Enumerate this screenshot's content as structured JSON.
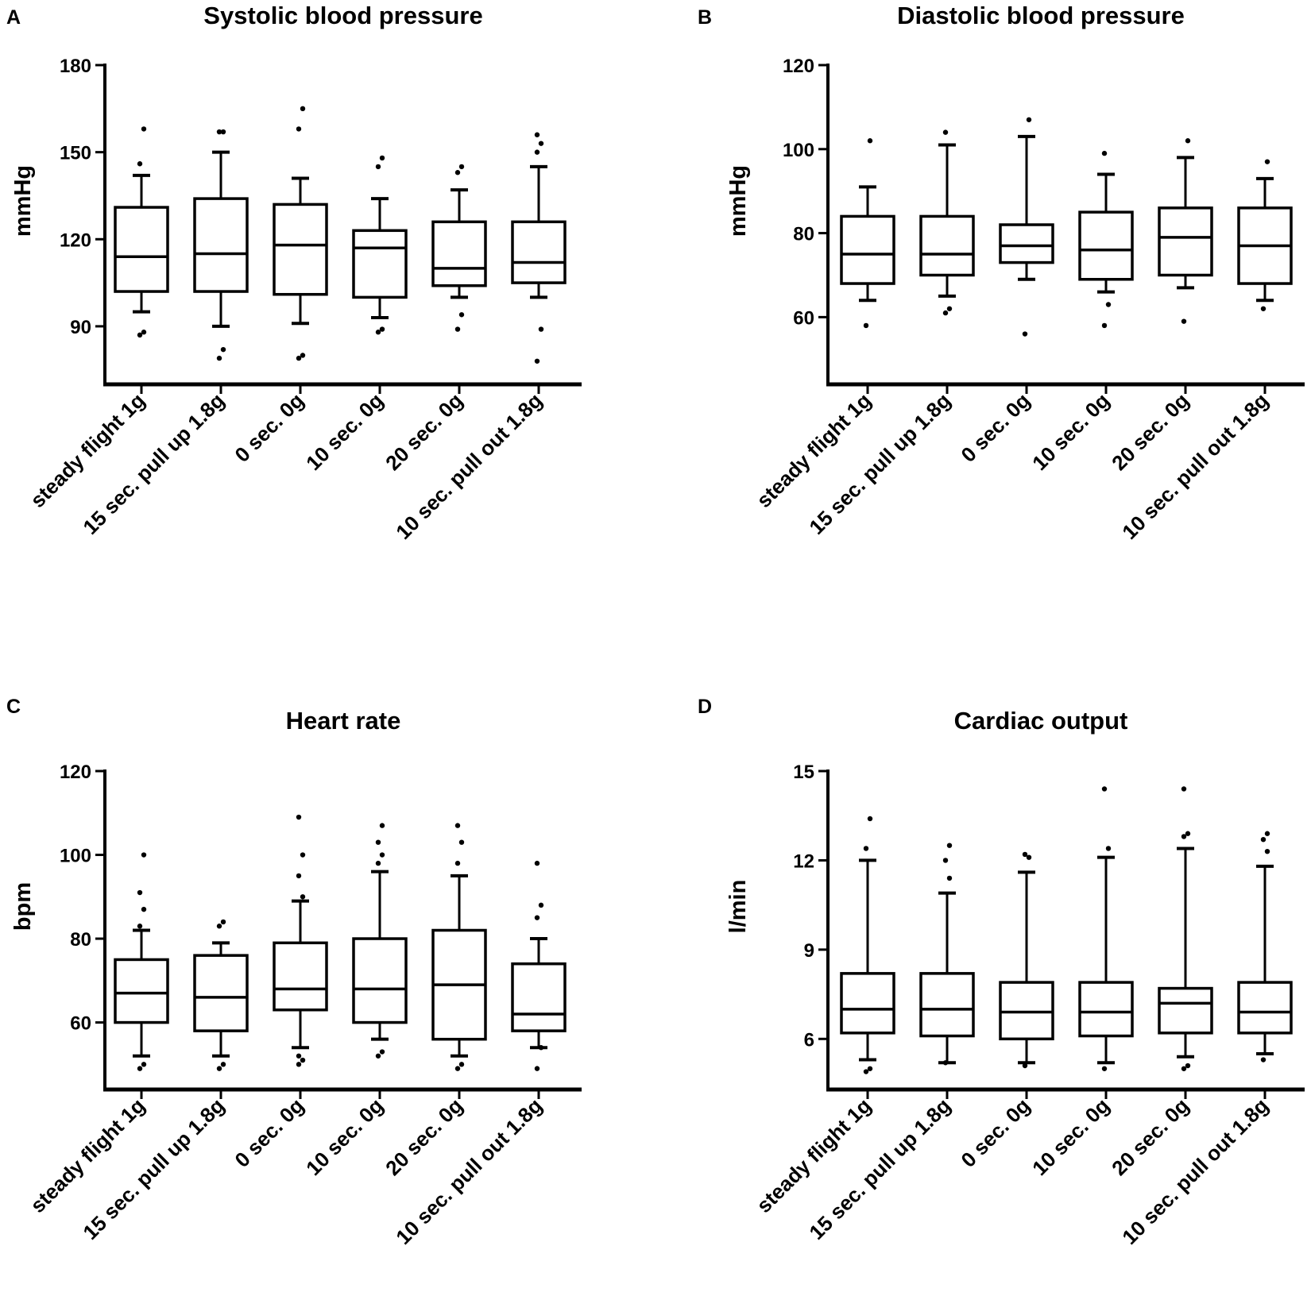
{
  "figure": {
    "colors": {
      "ink": "#000000",
      "background": "#ffffff"
    }
  },
  "chart_data": [
    {
      "panel": "A",
      "type": "box",
      "title": "Systolic blood pressure",
      "ylabel": "mmHg",
      "ylim": [
        70,
        180
      ],
      "yticks": [
        90,
        120,
        150,
        180
      ],
      "categories": [
        "steady flight 1g",
        "15 sec. pull up 1.8g",
        "0 sec. 0g",
        "10 sec. 0g",
        "20 sec. 0g",
        "10 sec. pull out 1.8g"
      ],
      "boxes": [
        {
          "whisker_low": 95,
          "q1": 102,
          "median": 114,
          "q3": 131,
          "whisker_high": 142,
          "outliers": [
            87,
            88,
            146,
            158
          ]
        },
        {
          "whisker_low": 90,
          "q1": 102,
          "median": 115,
          "q3": 134,
          "whisker_high": 150,
          "outliers": [
            79,
            82,
            157,
            157
          ]
        },
        {
          "whisker_low": 91,
          "q1": 101,
          "median": 118,
          "q3": 132,
          "whisker_high": 141,
          "outliers": [
            79,
            80,
            158,
            165
          ]
        },
        {
          "whisker_low": 93,
          "q1": 100,
          "median": 117,
          "q3": 123,
          "whisker_high": 134,
          "outliers": [
            88,
            89,
            145,
            148
          ]
        },
        {
          "whisker_low": 100,
          "q1": 104,
          "median": 110,
          "q3": 126,
          "whisker_high": 137,
          "outliers": [
            89,
            94,
            143,
            145
          ]
        },
        {
          "whisker_low": 100,
          "q1": 105,
          "median": 112,
          "q3": 126,
          "whisker_high": 145,
          "outliers": [
            78,
            89,
            150,
            153,
            156
          ]
        }
      ]
    },
    {
      "panel": "B",
      "type": "box",
      "title": "Diastolic blood pressure",
      "ylabel": "mmHg",
      "ylim": [
        44,
        120
      ],
      "yticks": [
        60,
        80,
        100,
        120
      ],
      "categories": [
        "steady flight 1g",
        "15 sec. pull up 1.8g",
        "0 sec. 0g",
        "10 sec. 0g",
        "20 sec. 0g",
        "10 sec. pull out 1.8g"
      ],
      "boxes": [
        {
          "whisker_low": 64,
          "q1": 68,
          "median": 75,
          "q3": 84,
          "whisker_high": 91,
          "outliers": [
            58,
            102
          ]
        },
        {
          "whisker_low": 65,
          "q1": 70,
          "median": 75,
          "q3": 84,
          "whisker_high": 101,
          "outliers": [
            61,
            62,
            104
          ]
        },
        {
          "whisker_low": 69,
          "q1": 73,
          "median": 77,
          "q3": 82,
          "whisker_high": 103,
          "outliers": [
            56,
            107
          ]
        },
        {
          "whisker_low": 66,
          "q1": 69,
          "median": 76,
          "q3": 85,
          "whisker_high": 94,
          "outliers": [
            58,
            63,
            99
          ]
        },
        {
          "whisker_low": 67,
          "q1": 70,
          "median": 79,
          "q3": 86,
          "whisker_high": 98,
          "outliers": [
            59,
            102
          ]
        },
        {
          "whisker_low": 64,
          "q1": 68,
          "median": 77,
          "q3": 86,
          "whisker_high": 93,
          "outliers": [
            62,
            97
          ]
        }
      ]
    },
    {
      "panel": "C",
      "type": "box",
      "title": "Heart rate",
      "ylabel": "bpm",
      "ylim": [
        44,
        120
      ],
      "yticks": [
        60,
        80,
        100,
        120
      ],
      "categories": [
        "steady flight 1g",
        "15 sec. pull up 1.8g",
        "0 sec. 0g",
        "10 sec. 0g",
        "20 sec. 0g",
        "10 sec. pull out 1.8g"
      ],
      "boxes": [
        {
          "whisker_low": 52,
          "q1": 60,
          "median": 67,
          "q3": 75,
          "whisker_high": 82,
          "outliers": [
            49,
            50,
            83,
            87,
            91,
            100
          ]
        },
        {
          "whisker_low": 52,
          "q1": 58,
          "median": 66,
          "q3": 76,
          "whisker_high": 79,
          "outliers": [
            49,
            50,
            83,
            84
          ]
        },
        {
          "whisker_low": 54,
          "q1": 63,
          "median": 68,
          "q3": 79,
          "whisker_high": 89,
          "outliers": [
            50,
            51,
            52,
            90,
            95,
            100,
            109
          ]
        },
        {
          "whisker_low": 56,
          "q1": 60,
          "median": 68,
          "q3": 80,
          "whisker_high": 96,
          "outliers": [
            52,
            53,
            98,
            100,
            103,
            107
          ]
        },
        {
          "whisker_low": 52,
          "q1": 56,
          "median": 69,
          "q3": 82,
          "whisker_high": 95,
          "outliers": [
            49,
            50,
            98,
            103,
            107
          ]
        },
        {
          "whisker_low": 54,
          "q1": 58,
          "median": 62,
          "q3": 74,
          "whisker_high": 80,
          "outliers": [
            49,
            54,
            85,
            88,
            98
          ]
        }
      ]
    },
    {
      "panel": "D",
      "type": "box",
      "title": "Cardiac output",
      "ylabel": "l/min",
      "ylim": [
        4.3,
        15
      ],
      "yticks": [
        6,
        9,
        12,
        15
      ],
      "categories": [
        "steady flight 1g",
        "15 sec. pull up 1.8g",
        "0 sec. 0g",
        "10 sec. 0g",
        "20 sec. 0g",
        "10 sec. pull out 1.8g"
      ],
      "boxes": [
        {
          "whisker_low": 5.3,
          "q1": 6.2,
          "median": 7.0,
          "q3": 8.2,
          "whisker_high": 12.0,
          "outliers": [
            4.9,
            5.0,
            12.4,
            13.4
          ]
        },
        {
          "whisker_low": 5.2,
          "q1": 6.1,
          "median": 7.0,
          "q3": 8.2,
          "whisker_high": 10.9,
          "outliers": [
            5.2,
            11.4,
            12.0,
            12.5
          ]
        },
        {
          "whisker_low": 5.2,
          "q1": 6.0,
          "median": 6.9,
          "q3": 7.9,
          "whisker_high": 11.6,
          "outliers": [
            5.1,
            12.1,
            12.2
          ]
        },
        {
          "whisker_low": 5.2,
          "q1": 6.1,
          "median": 6.9,
          "q3": 7.9,
          "whisker_high": 12.1,
          "outliers": [
            5.0,
            12.4,
            14.4
          ]
        },
        {
          "whisker_low": 5.4,
          "q1": 6.2,
          "median": 7.2,
          "q3": 7.7,
          "whisker_high": 12.4,
          "outliers": [
            5.0,
            5.1,
            12.8,
            12.9,
            14.4
          ]
        },
        {
          "whisker_low": 5.5,
          "q1": 6.2,
          "median": 6.9,
          "q3": 7.9,
          "whisker_high": 11.8,
          "outliers": [
            5.3,
            12.3,
            12.7,
            12.9
          ]
        }
      ]
    }
  ]
}
